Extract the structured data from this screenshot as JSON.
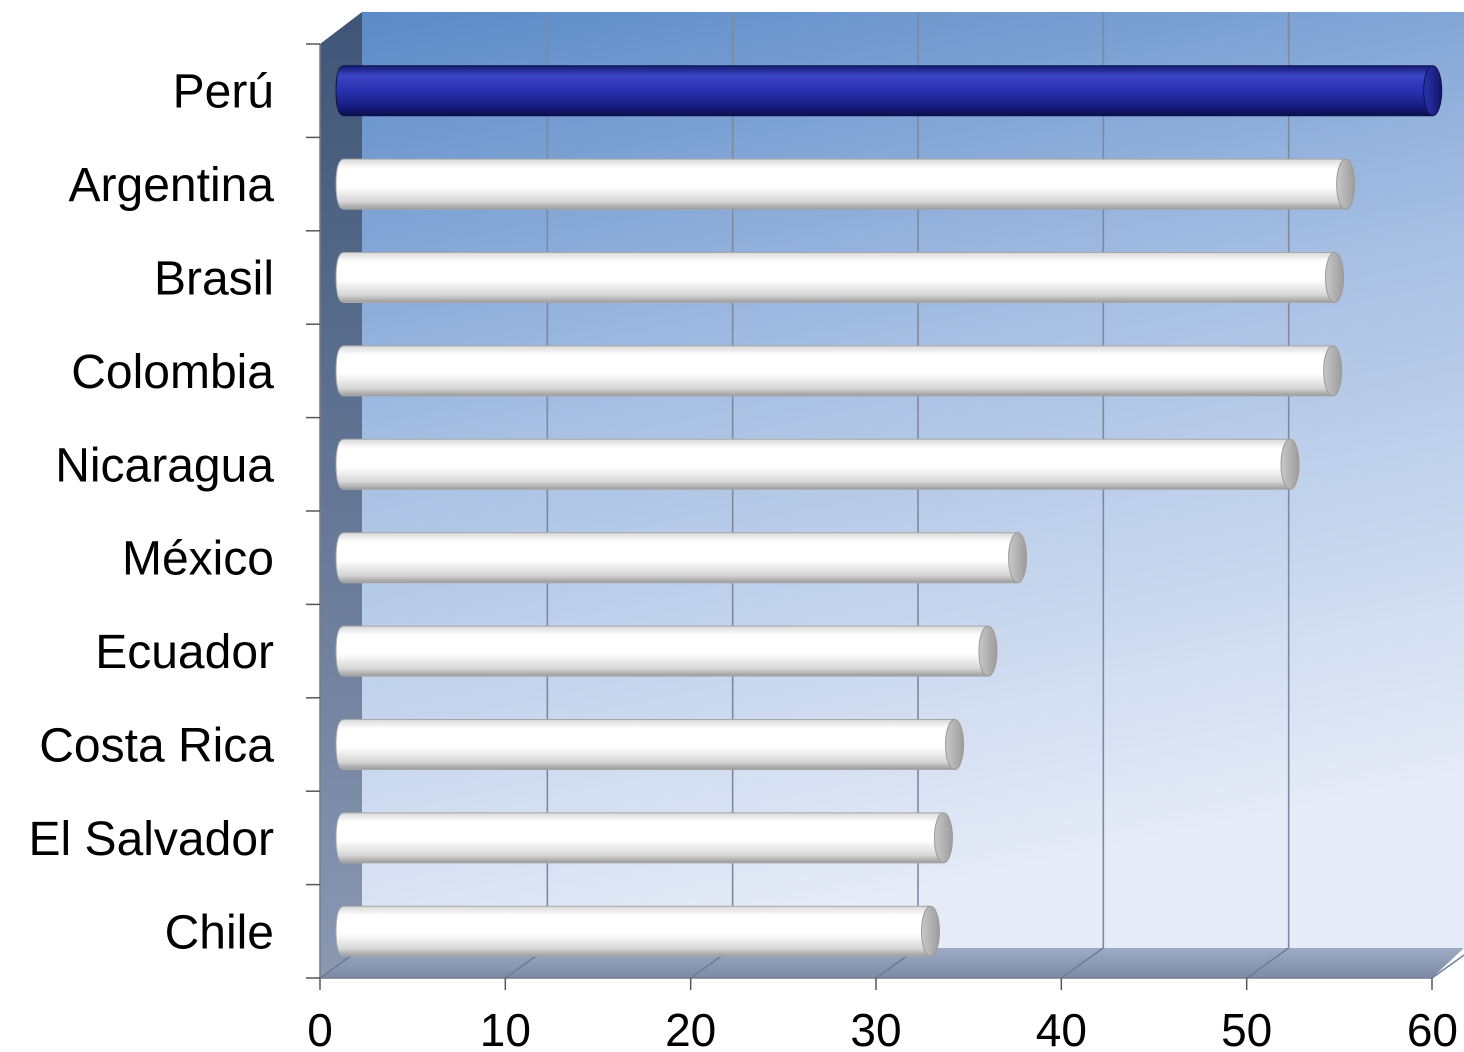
{
  "chart_data": {
    "type": "bar",
    "orientation": "horizontal",
    "title": "",
    "xlabel": "",
    "ylabel": "",
    "categories": [
      "Perú",
      "Argentina",
      "Brasil",
      "Colombia",
      "Nicaragua",
      "México",
      "Ecuador",
      "Costa Rica",
      "El Salvador",
      "Chile"
    ],
    "values": [
      59.5,
      54.8,
      54.2,
      54.1,
      51.8,
      37.1,
      35.5,
      33.7,
      33.1,
      32.4
    ],
    "highlight_category": "Perú",
    "xlim": [
      0,
      60
    ],
    "xticks": [
      "0",
      "10",
      "20",
      "30",
      "40",
      "50",
      "60"
    ],
    "grid": true,
    "legend": "none",
    "colors": {
      "highlight_bar": "#1f2496",
      "normal_bar": "#ffffff",
      "background_top": "#5b8bc8",
      "background_bottom": "#e4eaf6",
      "floor": "#8e9cb6",
      "side_wall": "#4f6180"
    }
  }
}
